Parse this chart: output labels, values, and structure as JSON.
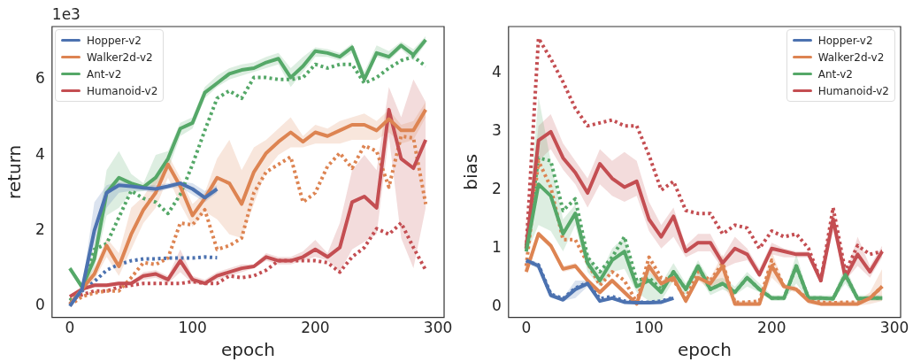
{
  "chart_data": [
    {
      "type": "line",
      "xlabel": "epoch",
      "ylabel": "return",
      "annotations": [
        "1e3"
      ],
      "xlim": [
        -14.5,
        305
      ],
      "ylim": [
        -0.3,
        7.4
      ],
      "xticks": [
        0,
        100,
        200,
        300
      ],
      "yticks": [
        0,
        2,
        4,
        6
      ],
      "grid": false,
      "legend": "top left",
      "marker": "none",
      "x": [
        0,
        10,
        20,
        30,
        40,
        50,
        60,
        70,
        80,
        90,
        100,
        110,
        120,
        130,
        140,
        150,
        160,
        170,
        180,
        190,
        200,
        210,
        220,
        230,
        240,
        250,
        260,
        270,
        280,
        290
      ],
      "series": [
        {
          "name": "Hopper-v2",
          "color": "#4c72b0",
          "line_style": "solid",
          "x": [
            0,
            10,
            20,
            30,
            40,
            50,
            60,
            70,
            80,
            90,
            100,
            110,
            120
          ],
          "values": [
            0,
            0.45,
            2.0,
            3.0,
            3.2,
            3.17,
            3.13,
            3.1,
            3.17,
            3.25,
            3.1,
            2.87,
            3.1
          ],
          "lower": [
            0,
            0.4,
            1.6,
            2.6,
            3.0,
            3.05,
            3.05,
            3.0,
            3.1,
            3.15,
            2.95,
            2.75,
            3.0
          ],
          "upper": [
            0.05,
            0.5,
            2.75,
            3.2,
            3.3,
            3.25,
            3.2,
            3.2,
            3.25,
            3.3,
            3.25,
            3.05,
            3.2
          ]
        },
        {
          "name": "Walker2d-v2",
          "color": "#dd8452",
          "line_style": "solid",
          "values": [
            0.05,
            0.45,
            0.85,
            1.6,
            1.05,
            1.9,
            2.55,
            3.0,
            3.75,
            3.17,
            2.4,
            2.85,
            3.4,
            3.25,
            2.7,
            3.55,
            4.05,
            4.35,
            4.6,
            4.35,
            4.6,
            4.5,
            4.65,
            4.8,
            4.8,
            4.65,
            4.95,
            4.65,
            4.65,
            5.2
          ],
          "lower": [
            0,
            0.35,
            0.7,
            1.3,
            0.8,
            1.5,
            2.2,
            2.6,
            3.4,
            2.7,
            2.1,
            2.5,
            2.3,
            1.9,
            1.8,
            2.7,
            3.6,
            4.0,
            4.2,
            4.2,
            4.3,
            4.3,
            4.3,
            4.4,
            4.4,
            4.4,
            4.6,
            4.3,
            4.4,
            5.0
          ],
          "upper": [
            0.1,
            0.55,
            1.0,
            1.8,
            1.4,
            2.6,
            2.9,
            3.4,
            4.0,
            3.4,
            2.7,
            3.0,
            3.9,
            4.4,
            3.6,
            4.2,
            4.4,
            4.7,
            5.0,
            4.5,
            4.8,
            4.7,
            4.9,
            5.0,
            5.1,
            4.9,
            5.2,
            4.8,
            4.9,
            5.4
          ]
        },
        {
          "name": "Ant-v2",
          "color": "#55a868",
          "line_style": "solid",
          "values": [
            1.0,
            0.5,
            1.25,
            3.0,
            3.4,
            3.25,
            3.15,
            3.4,
            3.9,
            4.7,
            4.85,
            5.65,
            5.9,
            6.15,
            6.25,
            6.3,
            6.45,
            6.55,
            6.05,
            6.35,
            6.75,
            6.7,
            6.6,
            6.85,
            6.0,
            6.7,
            6.6,
            6.9,
            6.65,
            7.05
          ],
          "lower": [
            0.95,
            0.4,
            1.0,
            2.4,
            2.6,
            3.0,
            3.05,
            3.2,
            3.6,
            4.5,
            4.7,
            5.5,
            5.8,
            6.0,
            6.1,
            6.2,
            6.3,
            6.4,
            5.8,
            6.2,
            6.6,
            6.6,
            6.5,
            6.7,
            5.9,
            6.6,
            6.5,
            6.8,
            6.5,
            6.95
          ],
          "upper": [
            1.05,
            0.6,
            1.5,
            3.6,
            4.1,
            3.5,
            3.25,
            4.0,
            4.1,
            4.85,
            5.0,
            5.8,
            6.1,
            6.3,
            6.4,
            6.45,
            6.6,
            6.7,
            6.3,
            6.6,
            6.85,
            6.8,
            6.7,
            6.95,
            6.2,
            6.9,
            6.75,
            7.0,
            6.8,
            7.15
          ]
        },
        {
          "name": "Humanoid-v2",
          "color": "#c44e52",
          "line_style": "solid",
          "values": [
            0.25,
            0.45,
            0.55,
            0.55,
            0.6,
            0.6,
            0.8,
            0.85,
            0.7,
            1.2,
            0.7,
            0.6,
            0.8,
            0.9,
            1.0,
            1.05,
            1.3,
            1.2,
            1.2,
            1.3,
            1.5,
            1.3,
            1.55,
            2.75,
            2.9,
            2.6,
            5.2,
            3.9,
            3.65,
            4.4
          ],
          "lower": [
            0.2,
            0.4,
            0.5,
            0.5,
            0.55,
            0.55,
            0.7,
            0.75,
            0.6,
            0.9,
            0.6,
            0.55,
            0.7,
            0.8,
            0.9,
            1.0,
            1.2,
            1.1,
            1.1,
            1.2,
            1.3,
            1.2,
            0.9,
            1.5,
            1.7,
            1.9,
            4.5,
            1.8,
            1.0,
            2.6
          ],
          "upper": [
            0.3,
            0.5,
            0.6,
            0.6,
            0.65,
            0.65,
            0.9,
            0.95,
            0.8,
            1.5,
            0.8,
            0.7,
            0.9,
            1.0,
            1.1,
            1.1,
            1.4,
            1.3,
            1.3,
            1.45,
            1.75,
            1.4,
            2.2,
            3.6,
            4.0,
            3.6,
            5.8,
            5.0,
            6.0,
            5.4
          ]
        },
        {
          "color": "#4c72b0",
          "line_style": "dotted",
          "x": [
            0,
            10,
            20,
            30,
            40,
            50,
            60,
            70,
            80,
            90,
            100,
            110,
            120
          ],
          "values": [
            0.05,
            0.4,
            0.65,
            0.95,
            1.1,
            1.2,
            1.25,
            1.25,
            1.27,
            1.27,
            1.27,
            1.3,
            1.28
          ]
        },
        {
          "color": "#dd8452",
          "line_style": "dotted",
          "values": [
            0.02,
            0.25,
            0.35,
            0.4,
            0.4,
            0.75,
            1.15,
            1.1,
            1.27,
            2.2,
            2.15,
            2.55,
            1.5,
            1.6,
            1.8,
            3.0,
            3.55,
            3.75,
            3.95,
            2.75,
            3.0,
            3.7,
            4.05,
            3.65,
            4.25,
            4.1,
            3.15,
            4.5,
            4.45,
            2.7
          ]
        },
        {
          "color": "#55a868",
          "line_style": "dotted",
          "values": [
            0.15,
            0.45,
            1.5,
            1.65,
            2.35,
            3.05,
            2.85,
            2.75,
            2.45,
            2.95,
            3.75,
            4.65,
            5.5,
            5.7,
            5.5,
            6.05,
            6.05,
            6.0,
            6.0,
            6.05,
            6.4,
            6.3,
            6.4,
            6.4,
            5.9,
            6.05,
            6.3,
            6.5,
            6.6,
            6.35
          ]
        },
        {
          "color": "#c44e52",
          "line_style": "dotted",
          "values": [
            0.15,
            0.3,
            0.4,
            0.4,
            0.5,
            0.55,
            0.6,
            0.6,
            0.6,
            0.6,
            0.65,
            0.6,
            0.6,
            0.8,
            0.75,
            0.8,
            0.95,
            1.2,
            1.2,
            1.2,
            1.2,
            1.15,
            0.9,
            1.3,
            1.55,
            2.05,
            1.9,
            2.2,
            1.55,
            0.95
          ]
        }
      ]
    },
    {
      "type": "line",
      "xlabel": "epoch",
      "ylabel": "bias",
      "xlim": [
        -14.4,
        305
      ],
      "ylim": [
        -0.18,
        4.8
      ],
      "xticks": [
        0,
        100,
        200,
        300
      ],
      "yticks": [
        0,
        1,
        2,
        3,
        4
      ],
      "grid": false,
      "legend": "top right",
      "marker": "none",
      "x": [
        0,
        10,
        20,
        30,
        40,
        50,
        60,
        70,
        80,
        90,
        100,
        110,
        120,
        130,
        140,
        150,
        160,
        170,
        180,
        190,
        200,
        210,
        220,
        230,
        240,
        250,
        260,
        270,
        280,
        290
      ],
      "series": [
        {
          "name": "Hopper-v2",
          "color": "#4c72b0",
          "line_style": "solid",
          "x": [
            0,
            10,
            20,
            30,
            40,
            50,
            60,
            70,
            80,
            90,
            100,
            110,
            120
          ],
          "values": [
            0.8,
            0.7,
            0.2,
            0.12,
            0.3,
            0.4,
            0.1,
            0.15,
            0.08,
            0.07,
            0.07,
            0.08,
            0.15
          ],
          "lower": [
            0.75,
            0.65,
            0.15,
            0.1,
            0.15,
            0.35,
            0.08,
            0.12,
            0.06,
            0.05,
            0.05,
            0.06,
            0.13
          ],
          "upper": [
            0.85,
            0.75,
            0.25,
            0.15,
            0.45,
            0.45,
            0.12,
            0.18,
            0.1,
            0.09,
            0.09,
            0.1,
            0.17
          ]
        },
        {
          "name": "Walker2d-v2",
          "color": "#dd8452",
          "line_style": "solid",
          "values": [
            0.6,
            1.25,
            1.05,
            0.65,
            0.7,
            0.45,
            0.25,
            0.45,
            0.25,
            0.05,
            0.7,
            0.4,
            0.5,
            0.1,
            0.5,
            0.4,
            0.7,
            0.05,
            0.05,
            0.05,
            0.7,
            0.35,
            0.3,
            0.1,
            0.05,
            0.05,
            0.05,
            0.05,
            0.15,
            0.35
          ],
          "lower": [
            0.55,
            1.2,
            1.0,
            0.6,
            0.65,
            0.4,
            0.2,
            0.4,
            0.2,
            0.02,
            0.6,
            0.35,
            0.45,
            0.05,
            0.45,
            0.3,
            0.4,
            0.02,
            0.02,
            0.02,
            0.5,
            0.3,
            0.25,
            0.05,
            0.02,
            0.02,
            0.02,
            0.02,
            0.05,
            0.1
          ],
          "upper": [
            0.65,
            1.3,
            1.1,
            0.7,
            0.75,
            0.5,
            0.3,
            0.5,
            0.3,
            0.1,
            0.8,
            0.45,
            0.55,
            0.15,
            0.6,
            0.5,
            0.9,
            0.1,
            0.1,
            0.1,
            0.95,
            0.4,
            0.35,
            0.15,
            0.1,
            0.1,
            0.1,
            0.1,
            0.25,
            0.65
          ]
        },
        {
          "name": "Ant-v2",
          "color": "#55a868",
          "line_style": "solid",
          "values": [
            0.95,
            2.1,
            1.9,
            1.25,
            1.6,
            0.75,
            0.45,
            0.8,
            0.95,
            0.35,
            0.45,
            0.25,
            0.6,
            0.3,
            0.7,
            0.3,
            0.4,
            0.25,
            0.5,
            0.3,
            0.15,
            0.15,
            0.7,
            0.15,
            0.15,
            0.14,
            0.55,
            0.14,
            0.15,
            0.15
          ],
          "lower": [
            0.9,
            1.4,
            1.3,
            0.95,
            1.4,
            0.6,
            0.35,
            0.6,
            0.65,
            0.25,
            0.1,
            0.1,
            0.45,
            0.2,
            0.55,
            0.2,
            0.3,
            0.2,
            0.35,
            0.25,
            0.1,
            0.1,
            0.4,
            0.1,
            0.1,
            0.1,
            0.4,
            0.1,
            0.1,
            0.1
          ],
          "upper": [
            1.0,
            3.6,
            2.5,
            1.5,
            1.75,
            0.9,
            0.55,
            1.0,
            1.2,
            0.45,
            0.6,
            0.4,
            0.75,
            0.4,
            0.8,
            0.45,
            0.5,
            0.35,
            0.6,
            0.4,
            0.2,
            0.2,
            0.9,
            0.2,
            0.2,
            0.2,
            0.7,
            0.2,
            0.2,
            0.2
          ]
        },
        {
          "name": "Humanoid-v2",
          "color": "#c44e52",
          "line_style": "solid",
          "values": [
            1.0,
            2.85,
            3.0,
            2.55,
            2.3,
            1.95,
            2.45,
            2.2,
            2.05,
            2.15,
            1.5,
            1.2,
            1.55,
            0.95,
            1.1,
            1.1,
            0.75,
            1.0,
            0.9,
            0.55,
            1.0,
            0.95,
            0.9,
            0.9,
            0.45,
            1.5,
            0.5,
            0.9,
            0.6,
            0.95
          ],
          "lower": [
            0.95,
            2.5,
            2.7,
            2.35,
            2.1,
            1.7,
            2.1,
            1.9,
            1.8,
            1.9,
            1.3,
            1.0,
            1.2,
            0.85,
            0.95,
            0.95,
            0.65,
            0.75,
            0.8,
            0.5,
            0.9,
            0.85,
            0.85,
            0.85,
            0.4,
            1.3,
            0.45,
            0.7,
            0.5,
            0.85
          ],
          "upper": [
            1.05,
            3.1,
            3.3,
            2.8,
            2.5,
            2.2,
            2.7,
            2.5,
            2.65,
            2.5,
            1.8,
            1.4,
            1.7,
            1.05,
            1.25,
            1.25,
            0.85,
            1.2,
            1.0,
            0.65,
            1.1,
            1.0,
            0.95,
            0.95,
            0.5,
            1.7,
            0.55,
            1.2,
            0.7,
            1.05
          ]
        },
        {
          "color": "#4c72b0",
          "line_style": "dotted",
          "x": [
            0,
            10,
            20,
            30,
            40,
            50,
            60,
            70,
            80,
            90,
            100,
            110,
            120
          ],
          "values": [
            0.78,
            0.72,
            0.22,
            0.14,
            0.32,
            0.42,
            0.14,
            0.18,
            0.1,
            0.08,
            0.08,
            0.1,
            0.16
          ]
        },
        {
          "color": "#dd8452",
          "line_style": "dotted",
          "values": [
            0.7,
            2.5,
            2.05,
            1.15,
            1.15,
            0.75,
            0.37,
            0.6,
            0.45,
            0.08,
            0.85,
            0.5,
            0.45,
            0.15,
            0.6,
            0.45,
            0.75,
            0.08,
            0.08,
            0.1,
            0.8,
            0.35,
            0.3,
            0.12,
            0.08,
            0.07,
            0.08,
            0.08,
            0.15,
            0.35
          ]
        },
        {
          "color": "#55a868",
          "line_style": "dotted",
          "values": [
            1.05,
            2.55,
            2.5,
            1.65,
            1.85,
            0.85,
            0.6,
            0.85,
            1.2,
            0.45,
            0.5,
            0.3,
            0.6,
            0.3,
            0.7,
            0.3,
            0.4,
            0.25,
            0.5,
            0.3,
            0.15,
            0.15,
            0.7,
            0.15,
            0.15,
            0.14,
            0.55,
            0.14,
            0.15,
            0.15
          ]
        },
        {
          "color": "#c44e52",
          "line_style": "dotted",
          "values": [
            1.0,
            4.6,
            4.25,
            3.85,
            3.4,
            3.1,
            3.15,
            3.2,
            3.1,
            3.1,
            2.6,
            2.0,
            2.15,
            1.65,
            1.6,
            1.6,
            1.25,
            1.4,
            1.35,
            1.0,
            1.3,
            1.2,
            1.25,
            1.0,
            0.45,
            1.7,
            0.6,
            1.05,
            0.9,
            0.95
          ]
        }
      ]
    }
  ]
}
